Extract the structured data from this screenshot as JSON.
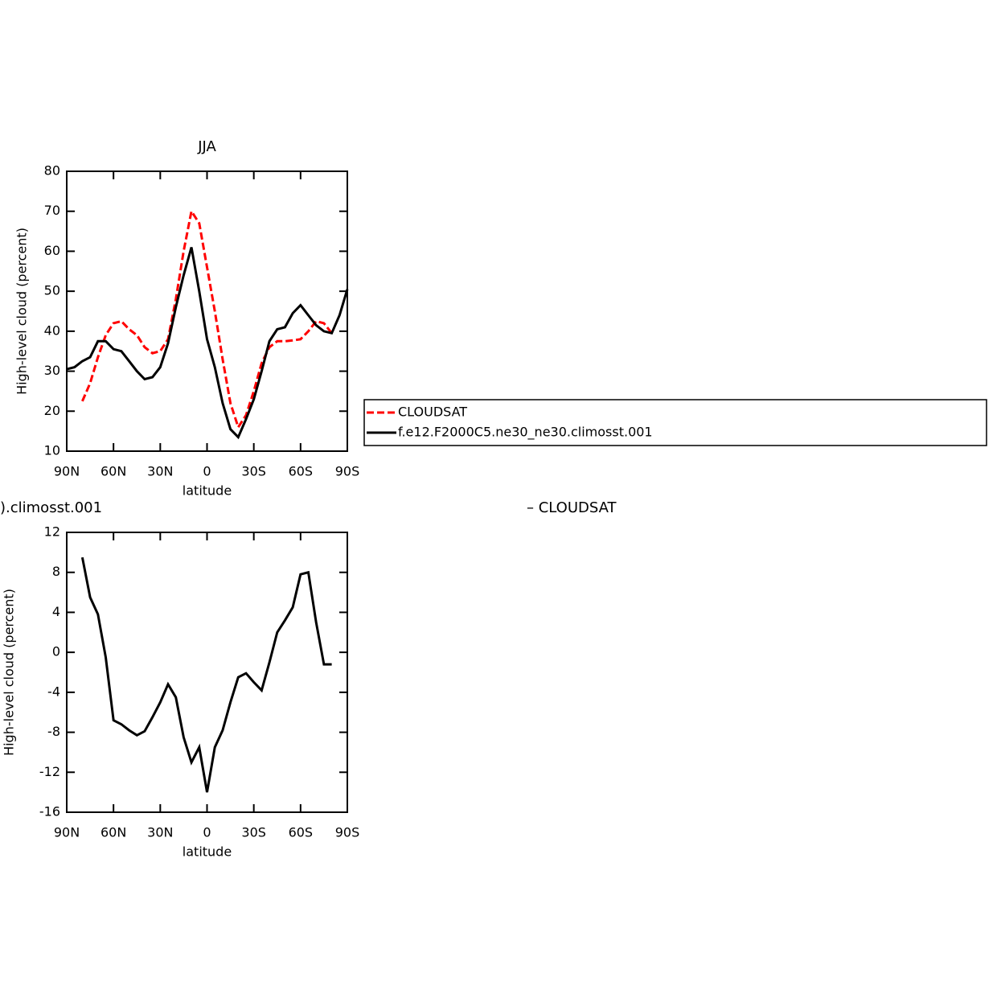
{
  "chart_data": [
    {
      "type": "line",
      "title": "JJA",
      "ylabel": "High-level cloud (percent)",
      "xlabel": "latitude",
      "x": [
        90,
        85,
        80,
        75,
        70,
        65,
        60,
        55,
        50,
        45,
        40,
        35,
        30,
        25,
        20,
        15,
        10,
        5,
        0,
        -5,
        -10,
        -15,
        -20,
        -25,
        -30,
        -35,
        -40,
        -45,
        -50,
        -55,
        -60,
        -65,
        -70,
        -75,
        -80,
        -85,
        -90
      ],
      "xlim": [
        90,
        -90
      ],
      "xticks": [
        {
          "value": 90,
          "label": "90N"
        },
        {
          "value": 60,
          "label": "60N"
        },
        {
          "value": 30,
          "label": "30N"
        },
        0,
        {
          "value": -30,
          "label": "30S"
        },
        {
          "value": -60,
          "label": "60S"
        },
        {
          "value": -90,
          "label": "90S"
        }
      ],
      "ylim": [
        10,
        80
      ],
      "yticks": [
        10,
        20,
        30,
        40,
        50,
        60,
        70,
        80
      ],
      "legend": "right",
      "series": [
        {
          "name": "CLOUDSAT",
          "color": "#ff0000",
          "line_style": "dashed",
          "values": [
            null,
            null,
            22.5,
            27,
            33.5,
            39,
            42,
            42.5,
            40.5,
            39,
            36,
            34.5,
            35,
            38,
            48,
            60,
            70,
            67,
            56,
            45,
            33,
            22,
            16,
            19,
            25,
            32,
            36,
            37.5,
            37.5,
            37.7,
            38,
            40,
            42.5,
            42,
            39.5,
            null,
            null
          ]
        },
        {
          "name": "f.e12.F2000C5.ne30_ne30.climosst.001",
          "color": "#000000",
          "line_style": "solid",
          "values": [
            30.5,
            31,
            32.5,
            33.5,
            37.5,
            37.5,
            35.5,
            35,
            32.5,
            30,
            28,
            28.5,
            31,
            37,
            46,
            54,
            61,
            50,
            38,
            31,
            22,
            15.5,
            13.5,
            18,
            23,
            30,
            37.5,
            40.5,
            41,
            44.5,
            46.5,
            44,
            41.5,
            40,
            39.5,
            44,
            50.5
          ]
        }
      ]
    },
    {
      "type": "line",
      "left_string": ").climosst.001",
      "right_string": "– CLOUDSAT",
      "ylabel": "High-level cloud (percent)",
      "xlabel": "latitude",
      "x": [
        80,
        75,
        70,
        65,
        60,
        55,
        50,
        45,
        40,
        35,
        30,
        25,
        20,
        15,
        10,
        5,
        0,
        -5,
        -10,
        -15,
        -20,
        -25,
        -30,
        -35,
        -40,
        -45,
        -50,
        -55,
        -60,
        -65,
        -70,
        -75,
        -80
      ],
      "xlim": [
        90,
        -90
      ],
      "xticks": [
        {
          "value": 90,
          "label": "90N"
        },
        {
          "value": 60,
          "label": "60N"
        },
        {
          "value": 30,
          "label": "30N"
        },
        0,
        {
          "value": -30,
          "label": "30S"
        },
        {
          "value": -60,
          "label": "60S"
        },
        {
          "value": -90,
          "label": "90S"
        }
      ],
      "ylim": [
        -16,
        12
      ],
      "yticks": [
        -16,
        -12,
        -8,
        -4,
        0,
        4,
        8,
        12
      ],
      "series": [
        {
          "color": "#000000",
          "line_style": "solid",
          "values": [
            9.5,
            5.5,
            3.8,
            -0.5,
            -6.8,
            -7.2,
            -7.8,
            -8.3,
            -7.9,
            -6.5,
            -5,
            -3.2,
            -4.5,
            -8.5,
            -11,
            -9.5,
            -14,
            -9.5,
            -7.8,
            -5,
            -2.5,
            -2.1,
            -3,
            -3.8,
            -1,
            2,
            3.2,
            4.5,
            7.8,
            8,
            3,
            -1.2,
            -1.2
          ]
        }
      ]
    }
  ]
}
